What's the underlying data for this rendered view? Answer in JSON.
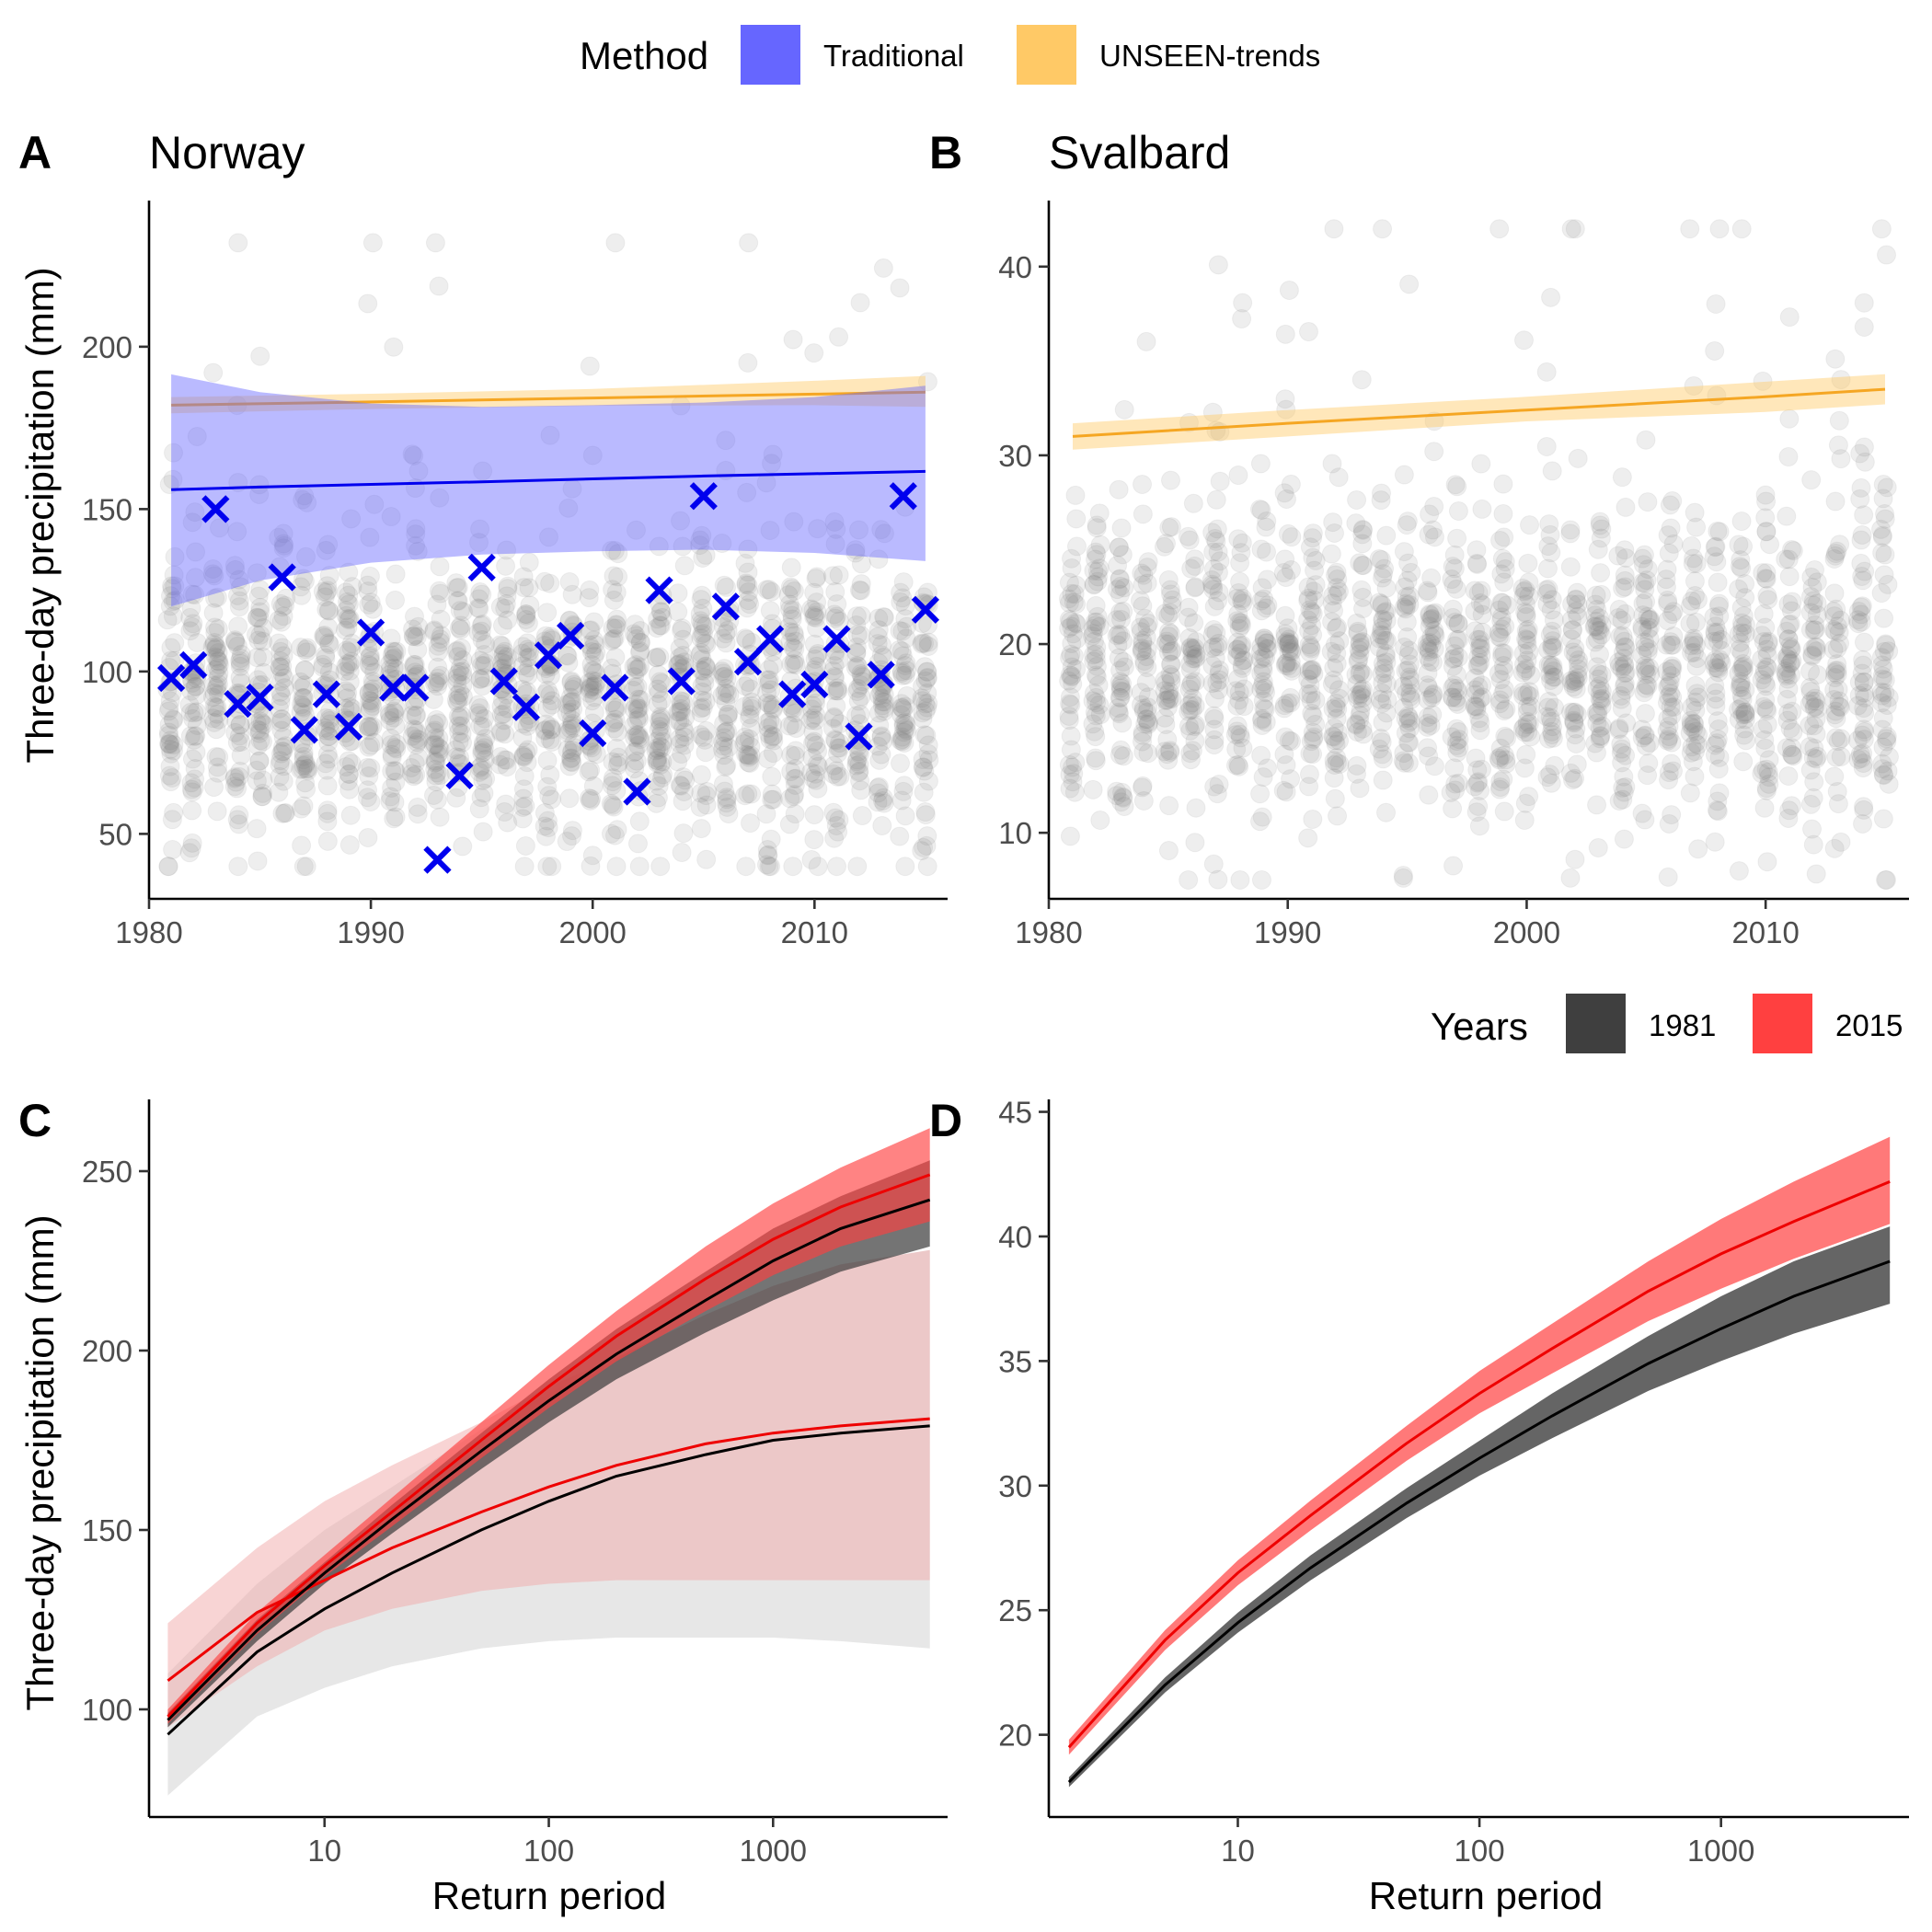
{
  "legends": {
    "method": {
      "title": "Method",
      "items": [
        {
          "label": "Traditional",
          "color": "#6666ff"
        },
        {
          "label": "UNSEEN-trends",
          "color": "#ffc966"
        }
      ]
    },
    "years": {
      "title": "Years",
      "items": [
        {
          "label": "1981",
          "color": "#3f3f3f"
        },
        {
          "label": "2015",
          "color": "#ff4040"
        }
      ]
    }
  },
  "chart_data": [
    {
      "panel": "A",
      "title": "Norway",
      "type": "scatter",
      "xlabel": "",
      "ylabel": "Three-day precipitation (mm)",
      "xlim": [
        1980,
        2016
      ],
      "ylim": [
        30,
        245
      ],
      "xticks": [
        1980,
        1990,
        2000,
        2010
      ],
      "yticks": [
        50,
        100,
        150,
        200
      ],
      "ensemble": {
        "color": "#7f7f7f",
        "year_range": [
          1981,
          2015
        ],
        "members_per_year": 48,
        "range": [
          40,
          232
        ],
        "center": 92,
        "spread": 22
      },
      "trends": [
        {
          "name": "UNSEEN-trends",
          "line_color": "#f5a623",
          "band_color": "#ffc966",
          "x": [
            1981,
            1990,
            2000,
            2010,
            2015
          ],
          "y": [
            182.0,
            183.0,
            184.2,
            185.4,
            186.0
          ],
          "lower": [
            179.5,
            180.8,
            181.8,
            182.0,
            181.5
          ],
          "upper": [
            184.5,
            185.5,
            187.0,
            189.5,
            191.0
          ]
        },
        {
          "name": "Traditional",
          "line_color": "#0000ee",
          "band_color": "#6666ff",
          "x": [
            1981,
            1985,
            1990,
            1995,
            2000,
            2005,
            2010,
            2015
          ],
          "y": [
            156.0,
            156.8,
            157.6,
            158.4,
            159.3,
            160.2,
            160.9,
            161.6
          ],
          "lower": [
            120.0,
            128.0,
            133.5,
            136.0,
            137.0,
            137.5,
            136.5,
            134.0
          ],
          "upper": [
            191.5,
            186.0,
            182.5,
            181.5,
            182.0,
            182.8,
            184.5,
            188.0
          ]
        }
      ],
      "observations": {
        "color": "#0000ee",
        "years": [
          1981,
          1982,
          1983,
          1984,
          1985,
          1986,
          1987,
          1988,
          1989,
          1990,
          1991,
          1992,
          1993,
          1994,
          1995,
          1996,
          1997,
          1998,
          1999,
          2000,
          2001,
          2002,
          2003,
          2004,
          2005,
          2006,
          2007,
          2008,
          2009,
          2010,
          2011,
          2012,
          2013,
          2014,
          2015
        ],
        "values": [
          98,
          102,
          150,
          90,
          92,
          129,
          82,
          93,
          83,
          112,
          95,
          95,
          42,
          68,
          132,
          97,
          89,
          105,
          111,
          81,
          95,
          63,
          125,
          97,
          154,
          120,
          103,
          110,
          93,
          96,
          110,
          80,
          99,
          154,
          119
        ]
      }
    },
    {
      "panel": "B",
      "title": "Svalbard",
      "type": "scatter",
      "xlabel": "",
      "ylabel": "",
      "xlim": [
        1980,
        2016
      ],
      "ylim": [
        6.5,
        43.5
      ],
      "xticks": [
        1980,
        1990,
        2000,
        2010
      ],
      "yticks": [
        10,
        20,
        30,
        40
      ],
      "ensemble": {
        "color": "#7f7f7f",
        "year_range": [
          1981,
          2015
        ],
        "members_per_year": 48,
        "range": [
          7.5,
          42
        ],
        "center": 18.5,
        "spread": 4.2
      },
      "trends": [
        {
          "name": "UNSEEN-trends",
          "line_color": "#f5a623",
          "band_color": "#ffc966",
          "x": [
            1981,
            1990,
            2000,
            2010,
            2015
          ],
          "y": [
            31.0,
            31.7,
            32.4,
            33.1,
            33.5
          ],
          "lower": [
            30.3,
            31.0,
            31.8,
            32.3,
            32.7
          ],
          "upper": [
            31.7,
            32.4,
            33.1,
            33.9,
            34.3
          ]
        }
      ],
      "observations": null
    },
    {
      "panel": "C",
      "title": "",
      "type": "line",
      "xscale": "log",
      "xlabel": "Return period",
      "ylabel": "Three-day precipitation (mm)",
      "xlim": [
        1.65,
        6000
      ],
      "ylim": [
        70,
        270
      ],
      "xticks": [
        10,
        100,
        1000
      ],
      "yticks": [
        100,
        150,
        200,
        250
      ],
      "series": [
        {
          "name": "1981",
          "method": "Traditional",
          "color": "#000000",
          "band_color": "#d4d4d4",
          "band_opacity": 0.55,
          "x": [
            2,
            5,
            10,
            20,
            50,
            100,
            200,
            500,
            1000,
            2000,
            5000
          ],
          "y": [
            93,
            116,
            128,
            138,
            150,
            158,
            165,
            171,
            175,
            177,
            179
          ],
          "lower": [
            76,
            98,
            106,
            112,
            117,
            119,
            120,
            120,
            120,
            119,
            117
          ],
          "upper": [
            110,
            135,
            150,
            162,
            178,
            188,
            198,
            210,
            218,
            224,
            228
          ]
        },
        {
          "name": "2015",
          "method": "Traditional",
          "color": "#ee0000",
          "band_color": "#f2aaaa",
          "band_opacity": 0.5,
          "x": [
            2,
            5,
            10,
            20,
            50,
            100,
            200,
            500,
            1000,
            2000,
            5000
          ],
          "y": [
            108,
            127,
            136,
            145,
            155,
            162,
            168,
            174,
            177,
            179,
            181
          ],
          "lower": [
            95,
            112,
            122,
            128,
            133,
            135,
            136,
            136,
            136,
            136,
            136
          ],
          "upper": [
            124,
            145,
            158,
            168,
            180,
            190,
            198,
            210,
            218,
            224,
            228
          ]
        },
        {
          "name": "1981",
          "method": "UNSEEN-trends",
          "color": "#000000",
          "band_color": "#3f3f3f",
          "band_opacity": 0.72,
          "x": [
            2,
            5,
            10,
            20,
            50,
            100,
            200,
            500,
            1000,
            2000,
            5000
          ],
          "y": [
            97,
            122,
            138,
            153,
            172,
            186,
            199,
            214,
            225,
            234,
            242
          ],
          "lower": [
            95,
            119,
            135,
            149,
            167,
            180,
            192,
            205,
            214,
            222,
            229
          ],
          "upper": [
            99,
            125,
            141,
            157,
            177,
            192,
            206,
            222,
            234,
            243,
            253
          ]
        },
        {
          "name": "2015",
          "method": "UNSEEN-trends",
          "color": "#ee0000",
          "band_color": "#ff4040",
          "band_opacity": 0.65,
          "x": [
            2,
            5,
            10,
            20,
            50,
            100,
            200,
            500,
            1000,
            2000,
            5000
          ],
          "y": [
            98,
            124,
            140,
            155,
            175,
            190,
            204,
            220,
            231,
            240,
            249
          ],
          "lower": [
            96,
            121,
            137,
            151,
            170,
            184,
            197,
            211,
            221,
            229,
            236
          ],
          "upper": [
            100,
            127,
            143,
            159,
            180,
            196,
            211,
            229,
            241,
            251,
            262
          ]
        }
      ]
    },
    {
      "panel": "D",
      "title": "",
      "type": "line",
      "xscale": "log",
      "xlabel": "Return period",
      "ylabel": "",
      "xlim": [
        1.65,
        6000
      ],
      "ylim": [
        16.7,
        45.5
      ],
      "xticks": [
        10,
        100,
        1000
      ],
      "yticks": [
        20,
        25,
        30,
        35,
        40,
        45
      ],
      "series": [
        {
          "name": "1981",
          "method": "UNSEEN-trends",
          "color": "#000000",
          "band_color": "#3f3f3f",
          "band_opacity": 0.8,
          "x": [
            2,
            5,
            10,
            20,
            50,
            100,
            200,
            500,
            1000,
            2000,
            5000
          ],
          "y": [
            18.1,
            22.0,
            24.5,
            26.7,
            29.3,
            31.1,
            32.8,
            34.9,
            36.3,
            37.6,
            39.0
          ],
          "lower": [
            17.9,
            21.7,
            24.1,
            26.2,
            28.7,
            30.4,
            31.9,
            33.8,
            35.0,
            36.1,
            37.3
          ],
          "upper": [
            18.3,
            22.3,
            24.9,
            27.2,
            29.9,
            31.8,
            33.7,
            36.0,
            37.6,
            39.0,
            40.4
          ]
        },
        {
          "name": "2015",
          "method": "UNSEEN-trends",
          "color": "#ee0000",
          "band_color": "#ff4040",
          "band_opacity": 0.7,
          "x": [
            2,
            5,
            10,
            20,
            50,
            100,
            200,
            500,
            1000,
            2000,
            5000
          ],
          "y": [
            19.5,
            23.8,
            26.5,
            28.8,
            31.7,
            33.7,
            35.5,
            37.8,
            39.3,
            40.6,
            42.2
          ],
          "lower": [
            19.2,
            23.4,
            26.0,
            28.2,
            31.0,
            32.9,
            34.5,
            36.6,
            37.9,
            39.1,
            40.5
          ],
          "upper": [
            19.8,
            24.2,
            27.0,
            29.4,
            32.4,
            34.6,
            36.5,
            39.0,
            40.7,
            42.2,
            44.0
          ]
        }
      ]
    }
  ]
}
